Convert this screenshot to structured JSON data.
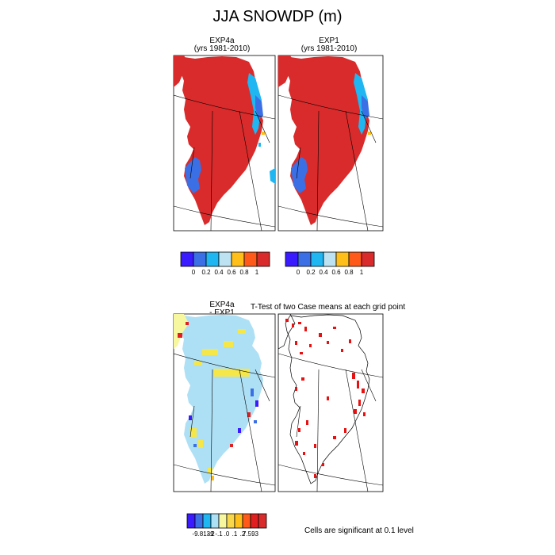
{
  "title": "JJA SNOWDP (m)",
  "panels": {
    "exp4a": {
      "name": "EXP4a",
      "period": "(yrs 1981-2010)"
    },
    "exp1": {
      "name": "EXP1",
      "period": "(yrs 1981-2010)"
    },
    "diff": {
      "line1": "EXP4a",
      "line2": "- EXP1"
    },
    "ttest": {
      "title": "T-Test of two Case means at each grid point"
    }
  },
  "colorbar_top": {
    "colors": [
      "#3a1aff",
      "#3b6fe6",
      "#1fb6f2",
      "#bde3f2",
      "#ffbf1a",
      "#ff5a1a",
      "#d92b2b"
    ],
    "labels": [
      "0",
      "0.2",
      "0.4",
      "0.6",
      "0.8",
      "1"
    ]
  },
  "colorbar_diff": {
    "colors": [
      "#3a1aff",
      "#3b6fe6",
      "#1fb6f2",
      "#aee0f5",
      "#f7f7a0",
      "#f8d84a",
      "#ffbf1a",
      "#ff5a1a",
      "#e02020",
      "#d92b2b"
    ],
    "labels": [
      "-9.8139",
      "-.2",
      "-.1",
      ".0",
      ".1",
      ".2",
      "7.593"
    ]
  },
  "significance_note": "Cells are significant at 0.1 level",
  "colors": {
    "snow_high": "#d92b2b",
    "snow_low": "#3b6fe6",
    "snow_mid": "#1fb6f2",
    "diff_base": "#aee0f5",
    "diff_pos": "#f5e64a",
    "sig_mark": "#e81010"
  }
}
